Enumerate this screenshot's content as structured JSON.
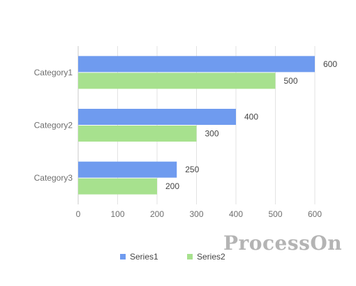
{
  "chart_data": {
    "type": "bar",
    "orientation": "horizontal",
    "categories": [
      "Category1",
      "Category2",
      "Category3"
    ],
    "series": [
      {
        "name": "Series1",
        "values": [
          600,
          400,
          250
        ],
        "color": "#6f9bef"
      },
      {
        "name": "Series2",
        "values": [
          500,
          300,
          200
        ],
        "color": "#a7e18e"
      }
    ],
    "xlim": [
      0,
      600
    ],
    "xticks": [
      0,
      100,
      200,
      300,
      400,
      500,
      600
    ],
    "grid": true,
    "legend": "bottom"
  },
  "watermark": "ProcessOn"
}
